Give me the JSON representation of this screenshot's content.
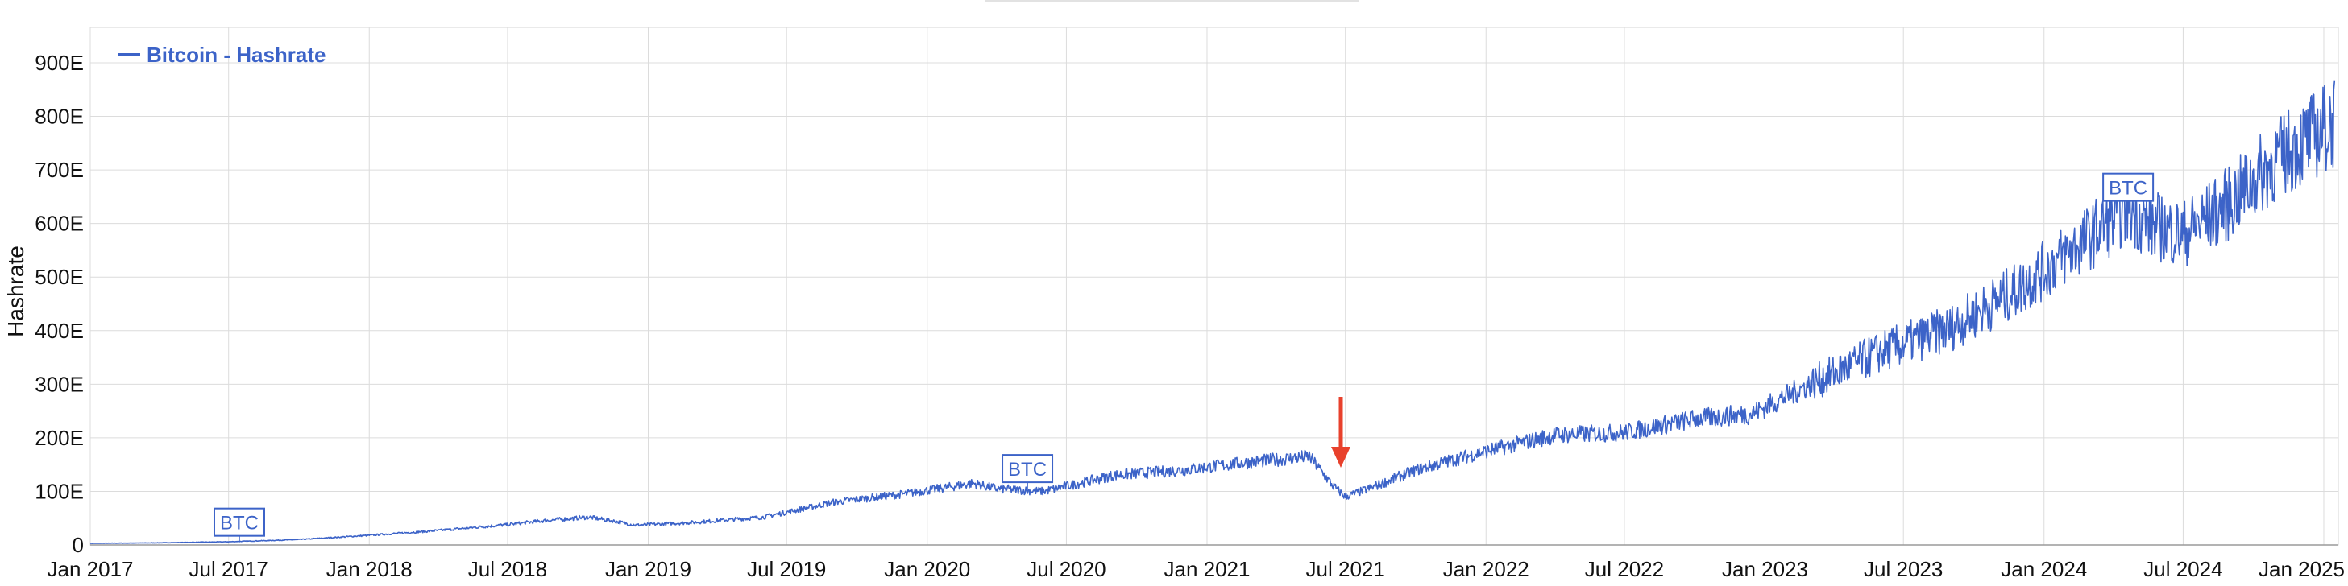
{
  "chart_data": {
    "type": "line",
    "title": "",
    "xlabel": "",
    "ylabel": "Hashrate",
    "ylim": [
      0,
      930
    ],
    "xlim": [
      "2017-01-01",
      "2025-01-20"
    ],
    "y_ticks": [
      "0",
      "100E",
      "200E",
      "300E",
      "400E",
      "500E",
      "600E",
      "700E",
      "800E",
      "900E"
    ],
    "x_ticks": [
      "Jan 2017",
      "Jul 2017",
      "Jan 2018",
      "Jul 2018",
      "Jan 2019",
      "Jul 2019",
      "Jan 2020",
      "Jul 2020",
      "Jan 2021",
      "Jul 2021",
      "Jan 2022",
      "Jul 2022",
      "Jan 2023",
      "Jul 2023",
      "Jan 2024",
      "Jul 2024",
      "Jan 2025"
    ],
    "grid": true,
    "legend_position": "top-left",
    "series": [
      {
        "name": "Bitcoin - Hashrate",
        "color": "#3c63c8",
        "points": [
          [
            "2017-01-01",
            3
          ],
          [
            "2017-04-01",
            4
          ],
          [
            "2017-07-01",
            6
          ],
          [
            "2017-10-01",
            10
          ],
          [
            "2018-01-01",
            18
          ],
          [
            "2018-04-01",
            27
          ],
          [
            "2018-07-01",
            38
          ],
          [
            "2018-08-15",
            45
          ],
          [
            "2018-10-15",
            52
          ],
          [
            "2018-11-15",
            45
          ],
          [
            "2018-12-15",
            37
          ],
          [
            "2019-03-01",
            42
          ],
          [
            "2019-06-01",
            52
          ],
          [
            "2019-09-01",
            80
          ],
          [
            "2019-12-01",
            95
          ],
          [
            "2020-03-01",
            115
          ],
          [
            "2020-04-01",
            105
          ],
          [
            "2020-06-01",
            100
          ],
          [
            "2020-09-01",
            130
          ],
          [
            "2020-12-01",
            140
          ],
          [
            "2021-03-01",
            155
          ],
          [
            "2021-05-15",
            165
          ],
          [
            "2021-06-15",
            110
          ],
          [
            "2021-07-01",
            90
          ],
          [
            "2021-08-01",
            105
          ],
          [
            "2021-10-01",
            140
          ],
          [
            "2022-01-01",
            175
          ],
          [
            "2022-04-01",
            205
          ],
          [
            "2022-07-01",
            210
          ],
          [
            "2022-10-01",
            235
          ],
          [
            "2022-12-15",
            245
          ],
          [
            "2023-03-01",
            300
          ],
          [
            "2023-06-01",
            360
          ],
          [
            "2023-09-01",
            405
          ],
          [
            "2023-12-01",
            480
          ],
          [
            "2024-03-01",
            575
          ],
          [
            "2024-04-20",
            630
          ],
          [
            "2024-05-15",
            600
          ],
          [
            "2024-07-01",
            580
          ],
          [
            "2024-09-01",
            640
          ],
          [
            "2024-11-01",
            720
          ],
          [
            "2025-01-15",
            790
          ]
        ]
      }
    ],
    "annotations": [
      {
        "label": "BTC",
        "date": "2017-07-15",
        "value": 5
      },
      {
        "label": "BTC",
        "date": "2020-05-11",
        "value": 105
      },
      {
        "label": "BTC",
        "date": "2024-04-20",
        "value": 630
      }
    ],
    "marker": {
      "type": "arrow",
      "date": "2021-06-25",
      "color": "#e8412c"
    }
  }
}
